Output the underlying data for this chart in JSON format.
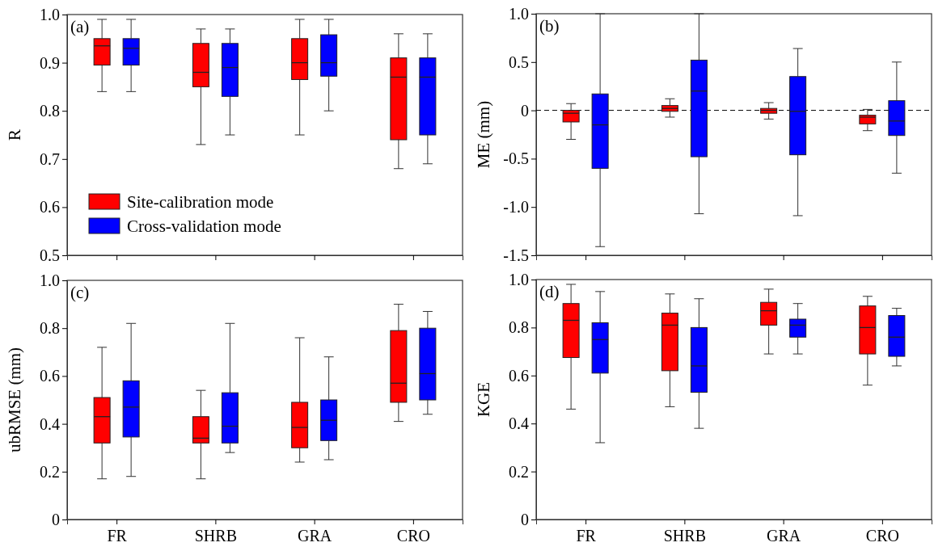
{
  "chart_data": [
    {
      "type": "box",
      "annotations": [
        "(a)"
      ],
      "ylabel": "R",
      "categories": [
        null,
        null,
        null,
        null
      ],
      "ylim": [
        0.5,
        1.0
      ],
      "yticks": [
        0.5,
        0.6,
        0.7,
        0.8,
        0.9,
        {
          "value": 1.0,
          "label": "1.0"
        }
      ],
      "tick_labels": "y",
      "legend": "bottom left",
      "series": [
        {
          "name": "Site-calibration mode",
          "color": "#ff0000",
          "boxes": [
            {
              "low": 0.84,
              "q1": 0.895,
              "median": 0.935,
              "q3": 0.95,
              "high": 0.99
            },
            {
              "low": 0.73,
              "q1": 0.85,
              "median": 0.88,
              "q3": 0.94,
              "high": 0.97
            },
            {
              "low": 0.75,
              "q1": 0.865,
              "median": 0.9,
              "q3": 0.95,
              "high": 0.99
            },
            {
              "low": 0.68,
              "q1": 0.74,
              "median": 0.87,
              "q3": 0.91,
              "high": 0.96
            }
          ]
        },
        {
          "name": "Cross-validation mode",
          "color": "#0000ff",
          "boxes": [
            {
              "low": 0.84,
              "q1": 0.895,
              "median": 0.93,
              "q3": 0.95,
              "high": 0.99
            },
            {
              "low": 0.75,
              "q1": 0.83,
              "median": 0.89,
              "q3": 0.94,
              "high": 0.97
            },
            {
              "low": 0.8,
              "q1": 0.872,
              "median": 0.9,
              "q3": 0.958,
              "high": 0.99
            },
            {
              "low": 0.69,
              "q1": 0.75,
              "median": 0.87,
              "q3": 0.91,
              "high": 0.96
            }
          ]
        }
      ]
    },
    {
      "type": "box",
      "annotations": [
        "(b)"
      ],
      "ylabel": "ME  (mm)",
      "categories": [
        null,
        null,
        null,
        null
      ],
      "ylim": [
        -1.5,
        1.0
      ],
      "yticks": [
        {
          "value": -1.5,
          "label": "-1.5"
        },
        {
          "value": -1.0,
          "label": "-1.0"
        },
        {
          "value": -0.5,
          "label": "-0.5"
        },
        0,
        0.5,
        {
          "value": 1.0,
          "label": "1.0"
        }
      ],
      "tick_labels": "y",
      "ref_lines": [
        {
          "axis": "y",
          "value": 0,
          "color": "#000000",
          "line_style": "dashed"
        }
      ],
      "series": [
        {
          "color": "#ff0000",
          "boxes": [
            {
              "low": -0.3,
              "q1": -0.12,
              "median": -0.03,
              "q3": 0,
              "high": 0.07
            },
            {
              "low": -0.07,
              "q1": -0.01,
              "median": 0.02,
              "q3": 0.05,
              "high": 0.12
            },
            {
              "low": -0.09,
              "q1": -0.03,
              "median": 0,
              "q3": 0.02,
              "high": 0.08
            },
            {
              "low": -0.21,
              "q1": -0.14,
              "median": -0.07,
              "q3": -0.05,
              "high": 0.01
            }
          ]
        },
        {
          "color": "#0000ff",
          "boxes": [
            {
              "low": -1.41,
              "q1": -0.6,
              "median": -0.15,
              "q3": 0.17,
              "high": 1.0
            },
            {
              "low": -1.07,
              "q1": -0.48,
              "median": 0.2,
              "q3": 0.52,
              "high": 1.0
            },
            {
              "low": -1.09,
              "q1": -0.46,
              "median": -0.01,
              "q3": 0.35,
              "high": 0.64
            },
            {
              "low": -0.65,
              "q1": -0.26,
              "median": -0.11,
              "q3": 0.1,
              "high": 0.5
            }
          ]
        }
      ]
    },
    {
      "type": "box",
      "annotations": [
        "(c)"
      ],
      "ylabel": "ubRMSE (mm)",
      "categories": [
        "FR",
        "SHRB",
        "GRA",
        "CRO"
      ],
      "ylim": [
        0,
        1.0
      ],
      "yticks": [
        0,
        0.2,
        0.4,
        0.6,
        0.8,
        {
          "value": 1.0,
          "label": "1.0"
        }
      ],
      "series": [
        {
          "color": "#ff0000",
          "boxes": [
            {
              "low": 0.17,
              "q1": 0.32,
              "median": 0.43,
              "q3": 0.51,
              "high": 0.72
            },
            {
              "low": 0.17,
              "q1": 0.32,
              "median": 0.34,
              "q3": 0.43,
              "high": 0.54
            },
            {
              "low": 0.24,
              "q1": 0.3,
              "median": 0.385,
              "q3": 0.49,
              "high": 0.76
            },
            {
              "low": 0.41,
              "q1": 0.49,
              "median": 0.57,
              "q3": 0.79,
              "high": 0.9
            }
          ]
        },
        {
          "color": "#0000ff",
          "boxes": [
            {
              "low": 0.18,
              "q1": 0.345,
              "median": 0.47,
              "q3": 0.58,
              "high": 0.82
            },
            {
              "low": 0.28,
              "q1": 0.32,
              "median": 0.39,
              "q3": 0.53,
              "high": 0.82
            },
            {
              "low": 0.25,
              "q1": 0.33,
              "median": 0.415,
              "q3": 0.5,
              "high": 0.68
            },
            {
              "low": 0.44,
              "q1": 0.5,
              "median": 0.61,
              "q3": 0.8,
              "high": 0.87
            }
          ]
        }
      ]
    },
    {
      "type": "box",
      "annotations": [
        "(d)"
      ],
      "ylabel": "KGE",
      "categories": [
        "FR",
        "SHRB",
        "GRA",
        "CRO"
      ],
      "ylim": [
        0,
        1.0
      ],
      "yticks": [
        0,
        0.2,
        0.4,
        0.6,
        0.8,
        {
          "value": 1.0,
          "label": "1.0"
        }
      ],
      "series": [
        {
          "color": "#ff0000",
          "boxes": [
            {
              "low": 0.46,
              "q1": 0.675,
              "median": 0.83,
              "q3": 0.9,
              "high": 0.98
            },
            {
              "low": 0.47,
              "q1": 0.62,
              "median": 0.81,
              "q3": 0.86,
              "high": 0.94
            },
            {
              "low": 0.69,
              "q1": 0.81,
              "median": 0.87,
              "q3": 0.905,
              "high": 0.96
            },
            {
              "low": 0.56,
              "q1": 0.69,
              "median": 0.8,
              "q3": 0.89,
              "high": 0.93
            }
          ]
        },
        {
          "color": "#0000ff",
          "boxes": [
            {
              "low": 0.32,
              "q1": 0.61,
              "median": 0.75,
              "q3": 0.82,
              "high": 0.95
            },
            {
              "low": 0.38,
              "q1": 0.53,
              "median": 0.64,
              "q3": 0.8,
              "high": 0.92
            },
            {
              "low": 0.69,
              "q1": 0.76,
              "median": 0.81,
              "q3": 0.835,
              "high": 0.9
            },
            {
              "low": 0.64,
              "q1": 0.68,
              "median": 0.76,
              "q3": 0.85,
              "high": 0.88
            }
          ]
        }
      ]
    }
  ]
}
